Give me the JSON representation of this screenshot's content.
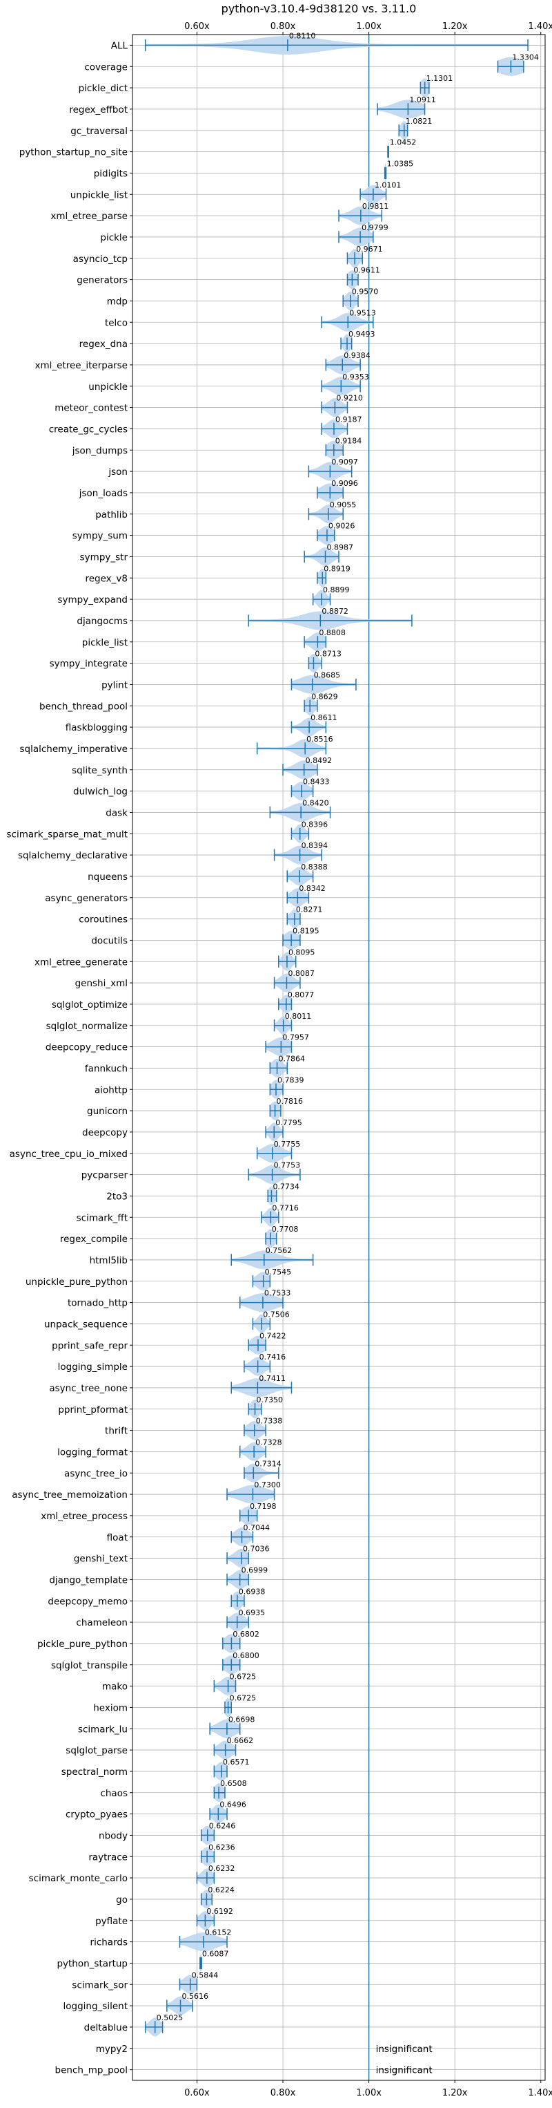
{
  "chart_data": {
    "type": "violin",
    "title": "python-v3.10.4-9d38120 vs. 3.11.0",
    "xlabel": "",
    "ylabel": "",
    "xlim": [
      0.45,
      1.41
    ],
    "x_ticks": [
      {
        "value": 0.6,
        "label": "0.60x"
      },
      {
        "value": 0.8,
        "label": "0.80x"
      },
      {
        "value": 1.0,
        "label": "1.00x"
      },
      {
        "value": 1.2,
        "label": "1.20x"
      },
      {
        "value": 1.4,
        "label": "1.40x"
      }
    ],
    "reference_line": 1.0,
    "grid": true,
    "x_axis_labels_top_and_bottom": true,
    "colors": {
      "violin": "#bcd6ee",
      "line": "#1f77b4"
    },
    "benchmarks": [
      {
        "name": "ALL",
        "value": 0.811,
        "label": "0.8110",
        "min": 0.48,
        "max": 1.37,
        "spread": 0.08
      },
      {
        "name": "coverage",
        "value": 1.3304,
        "label": "1.3304",
        "min": 1.3,
        "max": 1.36,
        "spread": 0.03
      },
      {
        "name": "pickle_dict",
        "value": 1.1301,
        "label": "1.1301",
        "min": 1.12,
        "max": 1.14,
        "spread": 0.01
      },
      {
        "name": "regex_effbot",
        "value": 1.0911,
        "label": "1.0911",
        "min": 1.02,
        "max": 1.13,
        "spread": 0.03
      },
      {
        "name": "gc_traversal",
        "value": 1.0821,
        "label": "1.0821",
        "min": 1.07,
        "max": 1.09,
        "spread": 0.008
      },
      {
        "name": "python_startup_no_site",
        "value": 1.0452,
        "label": "1.0452",
        "min": 1.044,
        "max": 1.046,
        "spread": 0.002
      },
      {
        "name": "pidigits",
        "value": 1.0385,
        "label": "1.0385",
        "min": 1.037,
        "max": 1.04,
        "spread": 0.002
      },
      {
        "name": "unpickle_list",
        "value": 1.0101,
        "label": "1.0101",
        "min": 0.98,
        "max": 1.04,
        "spread": 0.015
      },
      {
        "name": "xml_etree_parse",
        "value": 0.9811,
        "label": "0.9811",
        "min": 0.93,
        "max": 1.03,
        "spread": 0.02
      },
      {
        "name": "pickle",
        "value": 0.9799,
        "label": "0.9799",
        "min": 0.93,
        "max": 1.01,
        "spread": 0.02
      },
      {
        "name": "asyncio_tcp",
        "value": 0.9671,
        "label": "0.9671",
        "min": 0.95,
        "max": 0.985,
        "spread": 0.01
      },
      {
        "name": "generators",
        "value": 0.9611,
        "label": "0.9611",
        "min": 0.95,
        "max": 0.975,
        "spread": 0.01
      },
      {
        "name": "mdp",
        "value": 0.957,
        "label": "0.9570",
        "min": 0.94,
        "max": 0.975,
        "spread": 0.01
      },
      {
        "name": "telco",
        "value": 0.9513,
        "label": "0.9513",
        "min": 0.89,
        "max": 1.01,
        "spread": 0.02
      },
      {
        "name": "regex_dna",
        "value": 0.9493,
        "label": "0.9493",
        "min": 0.935,
        "max": 0.96,
        "spread": 0.008
      },
      {
        "name": "xml_etree_iterparse",
        "value": 0.9384,
        "label": "0.9384",
        "min": 0.9,
        "max": 0.98,
        "spread": 0.02
      },
      {
        "name": "unpickle",
        "value": 0.9353,
        "label": "0.9353",
        "min": 0.89,
        "max": 0.98,
        "spread": 0.02
      },
      {
        "name": "meteor_contest",
        "value": 0.921,
        "label": "0.9210",
        "min": 0.89,
        "max": 0.95,
        "spread": 0.015
      },
      {
        "name": "create_gc_cycles",
        "value": 0.9187,
        "label": "0.9187",
        "min": 0.89,
        "max": 0.95,
        "spread": 0.015
      },
      {
        "name": "json_dumps",
        "value": 0.9184,
        "label": "0.9184",
        "min": 0.9,
        "max": 0.94,
        "spread": 0.015
      },
      {
        "name": "json",
        "value": 0.9097,
        "label": "0.9097",
        "min": 0.86,
        "max": 0.96,
        "spread": 0.02
      },
      {
        "name": "json_loads",
        "value": 0.9096,
        "label": "0.9096",
        "min": 0.88,
        "max": 0.94,
        "spread": 0.02
      },
      {
        "name": "pathlib",
        "value": 0.9055,
        "label": "0.9055",
        "min": 0.86,
        "max": 0.94,
        "spread": 0.015
      },
      {
        "name": "sympy_sum",
        "value": 0.9026,
        "label": "0.9026",
        "min": 0.88,
        "max": 0.92,
        "spread": 0.015
      },
      {
        "name": "sympy_str",
        "value": 0.8987,
        "label": "0.8987",
        "min": 0.85,
        "max": 0.93,
        "spread": 0.015
      },
      {
        "name": "regex_v8",
        "value": 0.8919,
        "label": "0.8919",
        "min": 0.88,
        "max": 0.9,
        "spread": 0.008
      },
      {
        "name": "sympy_expand",
        "value": 0.8899,
        "label": "0.8899",
        "min": 0.87,
        "max": 0.91,
        "spread": 0.01
      },
      {
        "name": "djangocms",
        "value": 0.8872,
        "label": "0.8872",
        "min": 0.72,
        "max": 1.1,
        "spread": 0.04
      },
      {
        "name": "pickle_list",
        "value": 0.8808,
        "label": "0.8808",
        "min": 0.85,
        "max": 0.9,
        "spread": 0.015
      },
      {
        "name": "sympy_integrate",
        "value": 0.8713,
        "label": "0.8713",
        "min": 0.86,
        "max": 0.89,
        "spread": 0.01
      },
      {
        "name": "pylint",
        "value": 0.8685,
        "label": "0.8685",
        "min": 0.82,
        "max": 0.97,
        "spread": 0.03
      },
      {
        "name": "bench_thread_pool",
        "value": 0.8629,
        "label": "0.8629",
        "min": 0.85,
        "max": 0.88,
        "spread": 0.01
      },
      {
        "name": "flaskblogging",
        "value": 0.8611,
        "label": "0.8611",
        "min": 0.82,
        "max": 0.9,
        "spread": 0.015
      },
      {
        "name": "sqlalchemy_imperative",
        "value": 0.8516,
        "label": "0.8516",
        "min": 0.74,
        "max": 0.9,
        "spread": 0.02
      },
      {
        "name": "sqlite_synth",
        "value": 0.8492,
        "label": "0.8492",
        "min": 0.8,
        "max": 0.88,
        "spread": 0.02
      },
      {
        "name": "dulwich_log",
        "value": 0.8433,
        "label": "0.8433",
        "min": 0.82,
        "max": 0.87,
        "spread": 0.015
      },
      {
        "name": "dask",
        "value": 0.842,
        "label": "0.8420",
        "min": 0.77,
        "max": 0.91,
        "spread": 0.025
      },
      {
        "name": "scimark_sparse_mat_mult",
        "value": 0.8396,
        "label": "0.8396",
        "min": 0.82,
        "max": 0.86,
        "spread": 0.01
      },
      {
        "name": "sqlalchemy_declarative",
        "value": 0.8394,
        "label": "0.8394",
        "min": 0.78,
        "max": 0.89,
        "spread": 0.02
      },
      {
        "name": "nqueens",
        "value": 0.8388,
        "label": "0.8388",
        "min": 0.81,
        "max": 0.87,
        "spread": 0.015
      },
      {
        "name": "async_generators",
        "value": 0.8342,
        "label": "0.8342",
        "min": 0.81,
        "max": 0.86,
        "spread": 0.015
      },
      {
        "name": "coroutines",
        "value": 0.8271,
        "label": "0.8271",
        "min": 0.81,
        "max": 0.84,
        "spread": 0.01
      },
      {
        "name": "docutils",
        "value": 0.8195,
        "label": "0.8195",
        "min": 0.8,
        "max": 0.84,
        "spread": 0.015
      },
      {
        "name": "xml_etree_generate",
        "value": 0.8095,
        "label": "0.8095",
        "min": 0.79,
        "max": 0.83,
        "spread": 0.01
      },
      {
        "name": "genshi_xml",
        "value": 0.8087,
        "label": "0.8087",
        "min": 0.78,
        "max": 0.84,
        "spread": 0.015
      },
      {
        "name": "sqlglot_optimize",
        "value": 0.8077,
        "label": "0.8077",
        "min": 0.79,
        "max": 0.82,
        "spread": 0.01
      },
      {
        "name": "sqlglot_normalize",
        "value": 0.8011,
        "label": "0.8011",
        "min": 0.78,
        "max": 0.82,
        "spread": 0.01
      },
      {
        "name": "deepcopy_reduce",
        "value": 0.7957,
        "label": "0.7957",
        "min": 0.76,
        "max": 0.82,
        "spread": 0.02
      },
      {
        "name": "fannkuch",
        "value": 0.7864,
        "label": "0.7864",
        "min": 0.77,
        "max": 0.81,
        "spread": 0.012
      },
      {
        "name": "aiohttp",
        "value": 0.7839,
        "label": "0.7839",
        "min": 0.77,
        "max": 0.8,
        "spread": 0.01
      },
      {
        "name": "gunicorn",
        "value": 0.7816,
        "label": "0.7816",
        "min": 0.77,
        "max": 0.795,
        "spread": 0.01
      },
      {
        "name": "deepcopy",
        "value": 0.7795,
        "label": "0.7795",
        "min": 0.76,
        "max": 0.8,
        "spread": 0.01
      },
      {
        "name": "async_tree_cpu_io_mixed",
        "value": 0.7755,
        "label": "0.7755",
        "min": 0.74,
        "max": 0.82,
        "spread": 0.02
      },
      {
        "name": "pycparser",
        "value": 0.7753,
        "label": "0.7753",
        "min": 0.72,
        "max": 0.84,
        "spread": 0.02
      },
      {
        "name": "2to3",
        "value": 0.7734,
        "label": "0.7734",
        "min": 0.765,
        "max": 0.785,
        "spread": 0.008
      },
      {
        "name": "scimark_fft",
        "value": 0.7716,
        "label": "0.7716",
        "min": 0.75,
        "max": 0.79,
        "spread": 0.01
      },
      {
        "name": "regex_compile",
        "value": 0.7708,
        "label": "0.7708",
        "min": 0.76,
        "max": 0.785,
        "spread": 0.01
      },
      {
        "name": "html5lib",
        "value": 0.7562,
        "label": "0.7562",
        "min": 0.68,
        "max": 0.87,
        "spread": 0.03
      },
      {
        "name": "unpickle_pure_python",
        "value": 0.7545,
        "label": "0.7545",
        "min": 0.73,
        "max": 0.77,
        "spread": 0.015
      },
      {
        "name": "tornado_http",
        "value": 0.7533,
        "label": "0.7533",
        "min": 0.7,
        "max": 0.8,
        "spread": 0.03
      },
      {
        "name": "unpack_sequence",
        "value": 0.7506,
        "label": "0.7506",
        "min": 0.73,
        "max": 0.77,
        "spread": 0.01
      },
      {
        "name": "pprint_safe_repr",
        "value": 0.7422,
        "label": "0.7422",
        "min": 0.72,
        "max": 0.76,
        "spread": 0.015
      },
      {
        "name": "logging_simple",
        "value": 0.7416,
        "label": "0.7416",
        "min": 0.71,
        "max": 0.77,
        "spread": 0.015
      },
      {
        "name": "async_tree_none",
        "value": 0.7411,
        "label": "0.7411",
        "min": 0.68,
        "max": 0.82,
        "spread": 0.03
      },
      {
        "name": "pprint_pformat",
        "value": 0.735,
        "label": "0.7350",
        "min": 0.72,
        "max": 0.75,
        "spread": 0.01
      },
      {
        "name": "thrift",
        "value": 0.7338,
        "label": "0.7338",
        "min": 0.71,
        "max": 0.76,
        "spread": 0.015
      },
      {
        "name": "logging_format",
        "value": 0.7328,
        "label": "0.7328",
        "min": 0.7,
        "max": 0.76,
        "spread": 0.015
      },
      {
        "name": "async_tree_io",
        "value": 0.7314,
        "label": "0.7314",
        "min": 0.71,
        "max": 0.79,
        "spread": 0.015
      },
      {
        "name": "async_tree_memoization",
        "value": 0.73,
        "label": "0.7300",
        "min": 0.67,
        "max": 0.78,
        "spread": 0.03
      },
      {
        "name": "xml_etree_process",
        "value": 0.7198,
        "label": "0.7198",
        "min": 0.7,
        "max": 0.74,
        "spread": 0.015
      },
      {
        "name": "float",
        "value": 0.7044,
        "label": "0.7044",
        "min": 0.68,
        "max": 0.73,
        "spread": 0.015
      },
      {
        "name": "genshi_text",
        "value": 0.7036,
        "label": "0.7036",
        "min": 0.67,
        "max": 0.72,
        "spread": 0.015
      },
      {
        "name": "django_template",
        "value": 0.6999,
        "label": "0.6999",
        "min": 0.67,
        "max": 0.72,
        "spread": 0.015
      },
      {
        "name": "deepcopy_memo",
        "value": 0.6938,
        "label": "0.6938",
        "min": 0.68,
        "max": 0.71,
        "spread": 0.01
      },
      {
        "name": "chameleon",
        "value": 0.6935,
        "label": "0.6935",
        "min": 0.67,
        "max": 0.72,
        "spread": 0.015
      },
      {
        "name": "pickle_pure_python",
        "value": 0.6802,
        "label": "0.6802",
        "min": 0.66,
        "max": 0.7,
        "spread": 0.015
      },
      {
        "name": "sqlglot_transpile",
        "value": 0.68,
        "label": "0.6800",
        "min": 0.66,
        "max": 0.7,
        "spread": 0.015
      },
      {
        "name": "mako",
        "value": 0.6725,
        "label": "0.6725",
        "min": 0.64,
        "max": 0.69,
        "spread": 0.015
      },
      {
        "name": "hexiom",
        "value": 0.6725,
        "label": "0.6725",
        "min": 0.665,
        "max": 0.68,
        "spread": 0.008
      },
      {
        "name": "scimark_lu",
        "value": 0.6698,
        "label": "0.6698",
        "min": 0.63,
        "max": 0.7,
        "spread": 0.02
      },
      {
        "name": "sqlglot_parse",
        "value": 0.6662,
        "label": "0.6662",
        "min": 0.64,
        "max": 0.69,
        "spread": 0.015
      },
      {
        "name": "spectral_norm",
        "value": 0.6571,
        "label": "0.6571",
        "min": 0.64,
        "max": 0.67,
        "spread": 0.012
      },
      {
        "name": "chaos",
        "value": 0.6508,
        "label": "0.6508",
        "min": 0.64,
        "max": 0.665,
        "spread": 0.01
      },
      {
        "name": "crypto_pyaes",
        "value": 0.6496,
        "label": "0.6496",
        "min": 0.63,
        "max": 0.67,
        "spread": 0.012
      },
      {
        "name": "nbody",
        "value": 0.6246,
        "label": "0.6246",
        "min": 0.61,
        "max": 0.64,
        "spread": 0.012
      },
      {
        "name": "raytrace",
        "value": 0.6236,
        "label": "0.6236",
        "min": 0.61,
        "max": 0.64,
        "spread": 0.012
      },
      {
        "name": "scimark_monte_carlo",
        "value": 0.6232,
        "label": "0.6232",
        "min": 0.6,
        "max": 0.64,
        "spread": 0.012
      },
      {
        "name": "go",
        "value": 0.6224,
        "label": "0.6224",
        "min": 0.61,
        "max": 0.635,
        "spread": 0.01
      },
      {
        "name": "pyflate",
        "value": 0.6192,
        "label": "0.6192",
        "min": 0.6,
        "max": 0.64,
        "spread": 0.012
      },
      {
        "name": "richards",
        "value": 0.6152,
        "label": "0.6152",
        "min": 0.56,
        "max": 0.67,
        "spread": 0.03
      },
      {
        "name": "python_startup",
        "value": 0.6087,
        "label": "0.6087",
        "min": 0.607,
        "max": 0.611,
        "spread": 0.002
      },
      {
        "name": "scimark_sor",
        "value": 0.5844,
        "label": "0.5844",
        "min": 0.56,
        "max": 0.6,
        "spread": 0.015
      },
      {
        "name": "logging_silent",
        "value": 0.5616,
        "label": "0.5616",
        "min": 0.53,
        "max": 0.59,
        "spread": 0.015
      },
      {
        "name": "deltablue",
        "value": 0.5025,
        "label": "0.5025",
        "min": 0.48,
        "max": 0.52,
        "spread": 0.012
      },
      {
        "name": "mypy2",
        "value": null,
        "label": "insignificant"
      },
      {
        "name": "bench_mp_pool",
        "value": null,
        "label": "insignificant"
      }
    ]
  }
}
